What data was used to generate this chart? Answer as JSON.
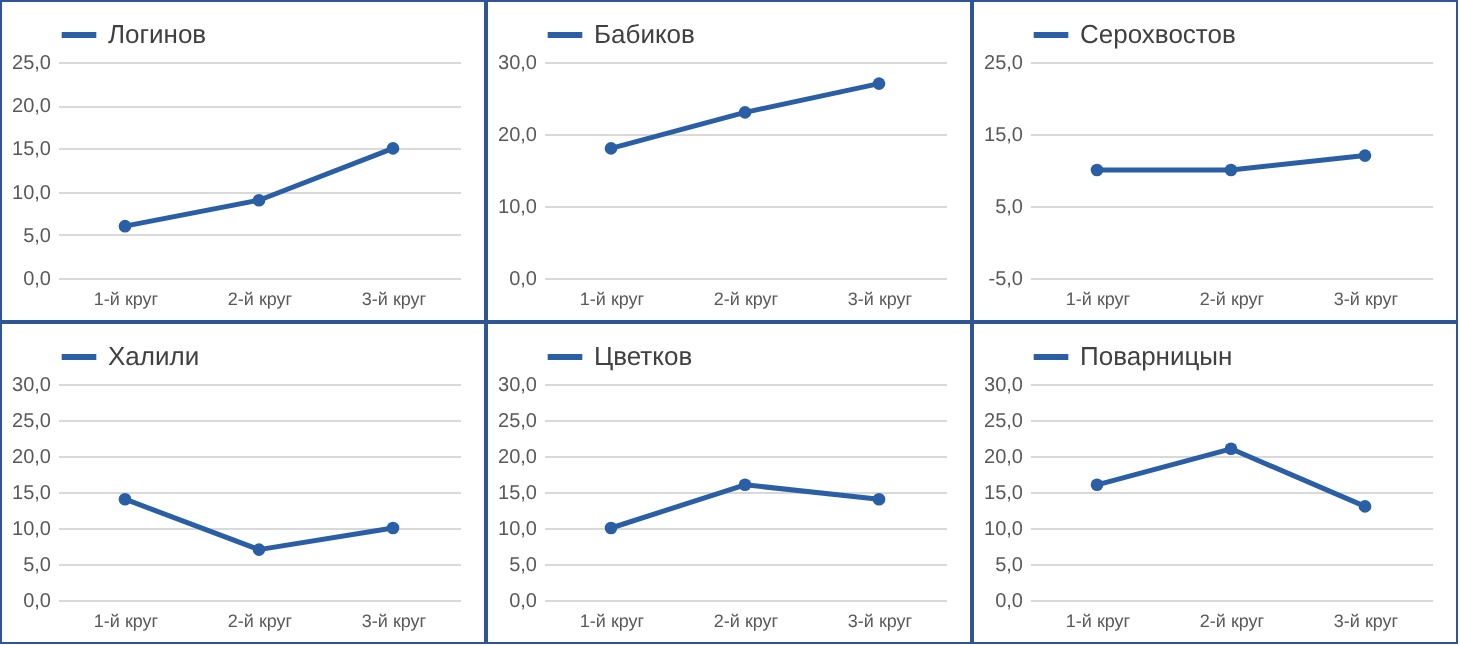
{
  "chart_data": [
    {
      "type": "line",
      "categories": [
        "1-й круг",
        "2-й круг",
        "3-й круг"
      ],
      "series": [
        {
          "name": "Логинов",
          "color": "#2a5fa5",
          "values": [
            6,
            9,
            15
          ]
        }
      ],
      "ylim": [
        0,
        25
      ],
      "yticks": [
        {
          "value": 0,
          "label": "0,0"
        },
        {
          "value": 5,
          "label": "5,0"
        },
        {
          "value": 10,
          "label": "10,0"
        },
        {
          "value": 15,
          "label": "15,0"
        },
        {
          "value": 20,
          "label": "20,0"
        },
        {
          "value": 25,
          "label": "25,0"
        }
      ],
      "grid": "y",
      "legend": "top",
      "marker": "circle"
    },
    {
      "type": "line",
      "categories": [
        "1-й круг",
        "2-й круг",
        "3-й круг"
      ],
      "series": [
        {
          "name": "Бабиков",
          "color": "#2a5fa5",
          "values": [
            18,
            23,
            27
          ]
        }
      ],
      "ylim": [
        0,
        30
      ],
      "yticks": [
        {
          "value": 0,
          "label": "0,0"
        },
        {
          "value": 10,
          "label": "10,0"
        },
        {
          "value": 20,
          "label": "20,0"
        },
        {
          "value": 30,
          "label": "30,0"
        }
      ],
      "grid": "y",
      "legend": "top",
      "marker": "circle"
    },
    {
      "type": "line",
      "categories": [
        "1-й круг",
        "2-й круг",
        "3-й круг"
      ],
      "series": [
        {
          "name": "Серохвостов",
          "color": "#2a5fa5",
          "values": [
            10,
            10,
            12
          ]
        }
      ],
      "ylim": [
        -5,
        25
      ],
      "yticks": [
        {
          "value": -5,
          "label": "-5,0"
        },
        {
          "value": 5,
          "label": "5,0"
        },
        {
          "value": 15,
          "label": "15,0"
        },
        {
          "value": 25,
          "label": "25,0"
        }
      ],
      "grid": "y",
      "legend": "top",
      "marker": "circle"
    },
    {
      "type": "line",
      "categories": [
        "1-й круг",
        "2-й круг",
        "3-й круг"
      ],
      "series": [
        {
          "name": "Халили",
          "color": "#2a5fa5",
          "values": [
            14,
            7,
            10
          ]
        }
      ],
      "ylim": [
        0,
        30
      ],
      "yticks": [
        {
          "value": 0,
          "label": "0,0"
        },
        {
          "value": 5,
          "label": "5,0"
        },
        {
          "value": 10,
          "label": "10,0"
        },
        {
          "value": 15,
          "label": "15,0"
        },
        {
          "value": 20,
          "label": "20,0"
        },
        {
          "value": 25,
          "label": "25,0"
        },
        {
          "value": 30,
          "label": "30,0"
        }
      ],
      "grid": "y",
      "legend": "top",
      "marker": "circle"
    },
    {
      "type": "line",
      "categories": [
        "1-й круг",
        "2-й круг",
        "3-й круг"
      ],
      "series": [
        {
          "name": "Цветков",
          "color": "#2a5fa5",
          "values": [
            10,
            16,
            14
          ]
        }
      ],
      "ylim": [
        0,
        30
      ],
      "yticks": [
        {
          "value": 0,
          "label": "0,0"
        },
        {
          "value": 5,
          "label": "5,0"
        },
        {
          "value": 10,
          "label": "10,0"
        },
        {
          "value": 15,
          "label": "15,0"
        },
        {
          "value": 20,
          "label": "20,0"
        },
        {
          "value": 25,
          "label": "25,0"
        },
        {
          "value": 30,
          "label": "30,0"
        }
      ],
      "grid": "y",
      "legend": "top",
      "marker": "circle"
    },
    {
      "type": "line",
      "categories": [
        "1-й круг",
        "2-й круг",
        "3-й круг"
      ],
      "series": [
        {
          "name": "Поварницын",
          "color": "#2a5fa5",
          "values": [
            16,
            21,
            13
          ]
        }
      ],
      "ylim": [
        0,
        30
      ],
      "yticks": [
        {
          "value": 0,
          "label": "0,0"
        },
        {
          "value": 5,
          "label": "5,0"
        },
        {
          "value": 10,
          "label": "10,0"
        },
        {
          "value": 15,
          "label": "15,0"
        },
        {
          "value": 20,
          "label": "20,0"
        },
        {
          "value": 25,
          "label": "25,0"
        },
        {
          "value": 30,
          "label": "30,0"
        }
      ],
      "grid": "y",
      "legend": "top",
      "marker": "circle"
    }
  ]
}
